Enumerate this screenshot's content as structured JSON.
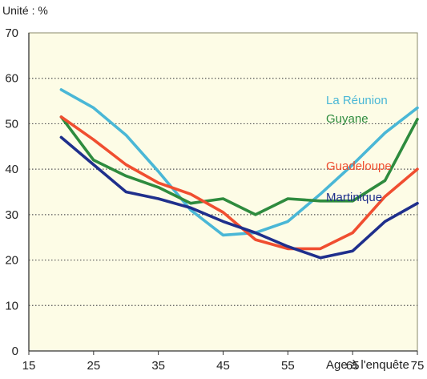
{
  "chart_data": {
    "type": "line",
    "unit_label": "Unité : %",
    "xlabel": "Age à l'enquête",
    "ylabel": "",
    "xlim": [
      15,
      75
    ],
    "ylim": [
      0,
      70
    ],
    "x_ticks": [
      15,
      25,
      35,
      45,
      55,
      65,
      75
    ],
    "y_ticks": [
      0,
      10,
      20,
      30,
      40,
      50,
      60,
      70
    ],
    "grid": true,
    "grid_style": "dotted horizontal",
    "plot_background": "#fdfce6",
    "legend_placement": "right, inline labels",
    "x": [
      20,
      25,
      30,
      35,
      40,
      45,
      50,
      55,
      60,
      65,
      70,
      75
    ],
    "series": [
      {
        "name": "La Réunion",
        "color": "#4ab7d6",
        "values": [
          57.5,
          53.5,
          47.5,
          39.5,
          31.0,
          25.5,
          26.0,
          28.5,
          34.5,
          41.0,
          48.0,
          53.5
        ]
      },
      {
        "name": "Guyane",
        "color": "#2e8b3e",
        "values": [
          51.5,
          42.0,
          38.5,
          36.0,
          32.5,
          33.5,
          30.0,
          33.5,
          33.0,
          33.0,
          37.5,
          51.0
        ]
      },
      {
        "name": "Guadeloupe",
        "color": "#f04e30",
        "values": [
          51.5,
          46.5,
          41.0,
          37.0,
          34.5,
          30.5,
          24.5,
          22.5,
          22.5,
          26.0,
          34.0,
          40.0
        ]
      },
      {
        "name": "Martinique",
        "color": "#1f2f8c",
        "values": [
          47.0,
          41.0,
          35.0,
          33.5,
          31.5,
          28.5,
          26.0,
          23.0,
          20.5,
          22.0,
          28.5,
          32.5
        ]
      }
    ]
  }
}
